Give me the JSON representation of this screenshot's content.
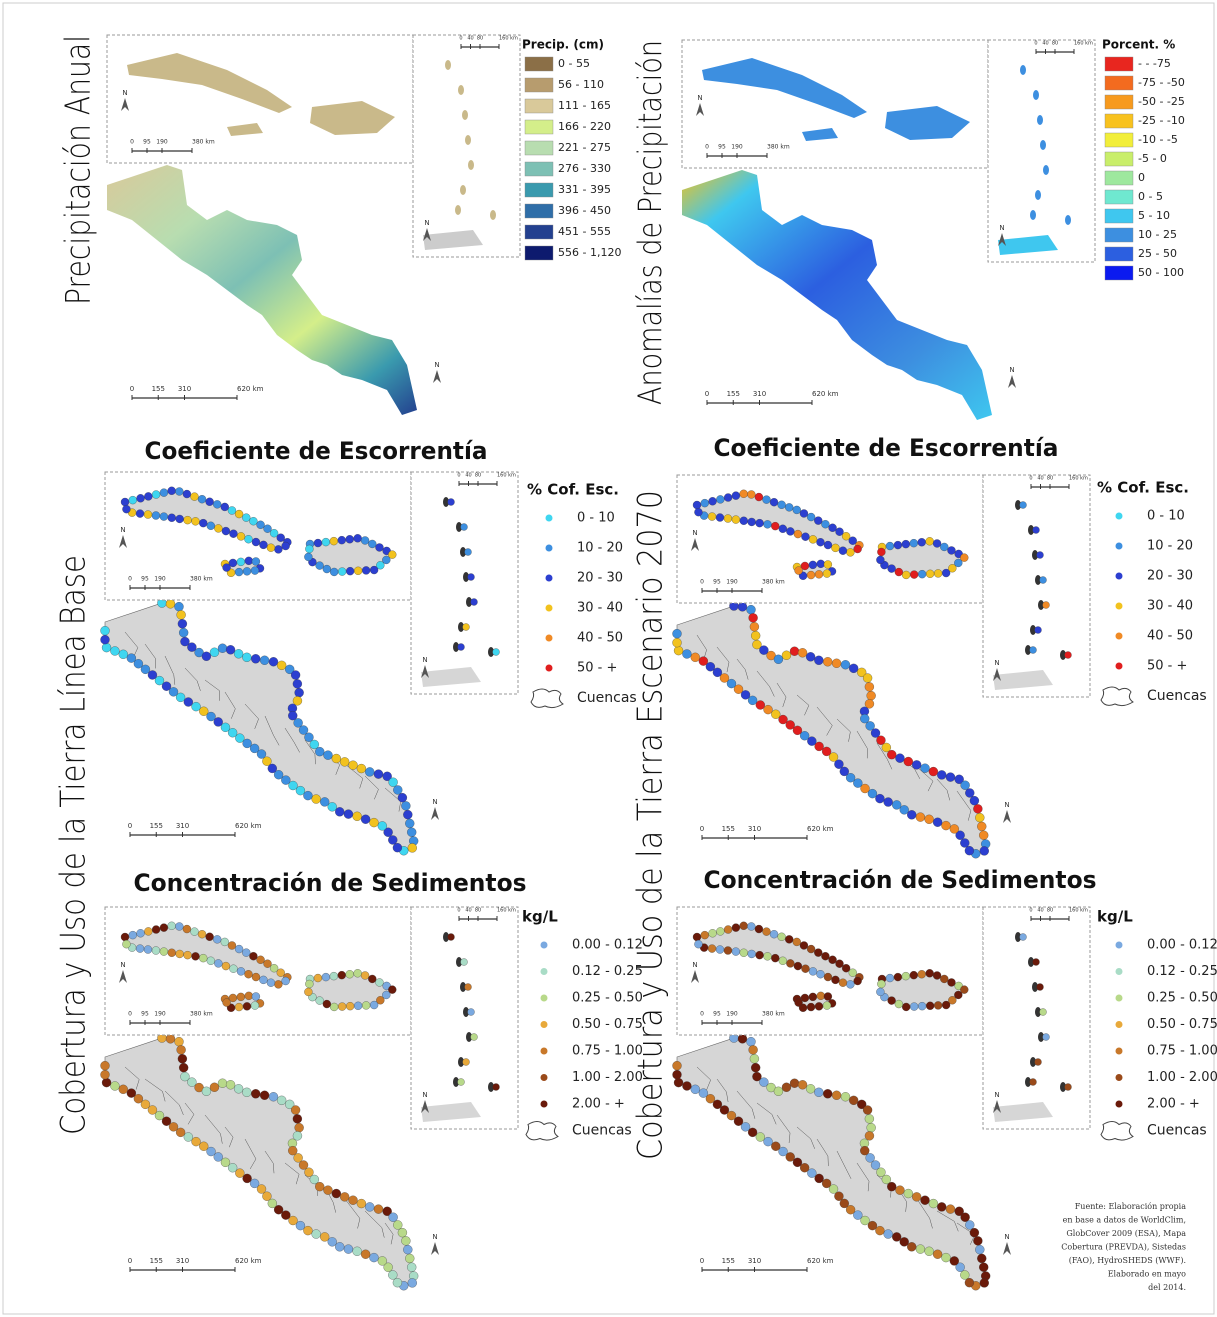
{
  "titles": {
    "precip": "Precipitación Anual",
    "anomalies": "Anomalías de Precipitación",
    "base": "Cobertura y Uso de la Tierra Línea Base",
    "scenario": "Cobertura y Uso de la Tierra Escenario 2070"
  },
  "north_label": "N",
  "scale_main": [
    "0",
    "155",
    "310",
    "620 km"
  ],
  "scale_inset": [
    "0",
    "95",
    "190",
    "380 km"
  ],
  "scale_small": [
    "0",
    "40",
    "80",
    "160 km"
  ],
  "panels": [
    {
      "legend_title": "Precip. (cm)",
      "legend": [
        {
          "label": "0 - 55",
          "color": "#8b6f47"
        },
        {
          "label": "56 - 110",
          "color": "#b79c6e"
        },
        {
          "label": "111 - 165",
          "color": "#d9c99a"
        },
        {
          "label": "166 - 220",
          "color": "#d4ee8a"
        },
        {
          "label": "221 - 275",
          "color": "#b8ddb0"
        },
        {
          "label": "276 - 330",
          "color": "#7dc0b4"
        },
        {
          "label": "331 - 395",
          "color": "#3a9aae"
        },
        {
          "label": "396 - 450",
          "color": "#2f6ea8"
        },
        {
          "label": "451 - 555",
          "color": "#23408f"
        },
        {
          "label": "556 - 1,120",
          "color": "#0d1a6e"
        }
      ]
    },
    {
      "legend_title": "Porcent. %",
      "legend": [
        {
          "label": "- - -75",
          "color": "#e8261f"
        },
        {
          "label": "-75 - -50",
          "color": "#f36b1f"
        },
        {
          "label": "-50 - -25",
          "color": "#f79a1e"
        },
        {
          "label": "-25 - -10",
          "color": "#f8c21e"
        },
        {
          "label": "-10 - -5",
          "color": "#f2ee3a"
        },
        {
          "label": "-5 - 0",
          "color": "#c9ee6a"
        },
        {
          "label": "0",
          "color": "#9ee89e"
        },
        {
          "label": "0 - 5",
          "color": "#6fe8d0"
        },
        {
          "label": "5 - 10",
          "color": "#3fc7ef"
        },
        {
          "label": "10 - 25",
          "color": "#3d8fe0"
        },
        {
          "label": "25 - 50",
          "color": "#2c5fe0"
        },
        {
          "label": "50 - 100",
          "color": "#0b1af0"
        }
      ]
    },
    {
      "heading": "Coeficiente de Escorrentía",
      "legend_title": "% Cof. Esc.",
      "basin_label": "Cuencas",
      "legend": [
        {
          "label": "0 - 10",
          "color": "#3fd6f0"
        },
        {
          "label": "10 - 20",
          "color": "#3d8fe0"
        },
        {
          "label": "20 - 30",
          "color": "#2c3fd0"
        },
        {
          "label": "30 - 40",
          "color": "#f2c21e"
        },
        {
          "label": "40 - 50",
          "color": "#f08a25"
        },
        {
          "label": "50 - +",
          "color": "#e01e1e"
        }
      ]
    },
    {
      "heading": "Coeficiente de Escorrentía",
      "legend_title": "% Cof. Esc.",
      "basin_label": "Cuencas",
      "legend": [
        {
          "label": "0 - 10",
          "color": "#3fd6f0"
        },
        {
          "label": "10 - 20",
          "color": "#3d8fe0"
        },
        {
          "label": "20 - 30",
          "color": "#2c3fd0"
        },
        {
          "label": "30 - 40",
          "color": "#f2c21e"
        },
        {
          "label": "40 - 50",
          "color": "#f08a25"
        },
        {
          "label": "50 - +",
          "color": "#e01e1e"
        }
      ]
    },
    {
      "heading": "Concentración de Sedimentos",
      "legend_title": "kg/L",
      "basin_label": "Cuencas",
      "legend": [
        {
          "label": "0.00 - 0.12",
          "color": "#7aa9e0"
        },
        {
          "label": "0.12 - 0.25",
          "color": "#a9dcc6"
        },
        {
          "label": "0.25 - 0.50",
          "color": "#b8d98a"
        },
        {
          "label": "0.50 - 0.75",
          "color": "#e8a93a"
        },
        {
          "label": "0.75 - 1.00",
          "color": "#c8782a"
        },
        {
          "label": "1.00 - 2.00",
          "color": "#9a4a1a"
        },
        {
          "label": "2.00 - +",
          "color": "#6a1a0a"
        }
      ]
    },
    {
      "heading": "Concentración de Sedimentos",
      "legend_title": "kg/L",
      "basin_label": "Cuencas",
      "legend": [
        {
          "label": "0.00 - 0.12",
          "color": "#7aa9e0"
        },
        {
          "label": "0.12 - 0.25",
          "color": "#a9dcc6"
        },
        {
          "label": "0.25 - 0.50",
          "color": "#b8d98a"
        },
        {
          "label": "0.50 - 0.75",
          "color": "#e8a93a"
        },
        {
          "label": "0.75 - 1.00",
          "color": "#c8782a"
        },
        {
          "label": "1.00 - 2.00",
          "color": "#9a4a1a"
        },
        {
          "label": "2.00 - +",
          "color": "#6a1a0a"
        }
      ]
    }
  ],
  "source": [
    "Fuente: Elaboración propia",
    "en base a datos de WorldClim,",
    "GlobCover 2009 (ESA), Mapa",
    "Cobertura (PREVDA), Sistedas",
    "(FAO), HydroSHEDS (WWF).",
    "Elaborado en mayo",
    "del 2014."
  ]
}
